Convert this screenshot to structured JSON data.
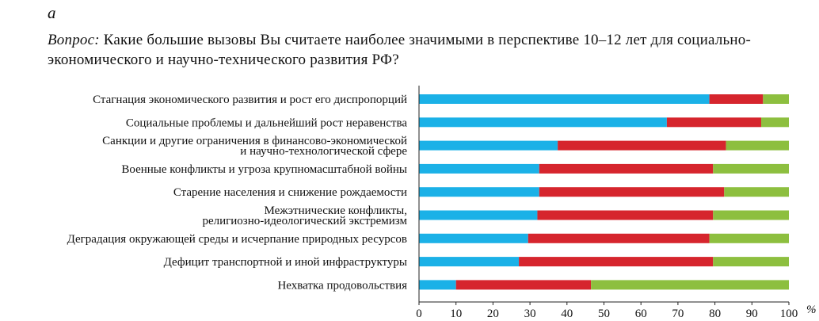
{
  "panel_letter": "а",
  "question": {
    "label": "Вопрос:",
    "text": " Какие большие вызовы Вы считаете наиболее значимыми в  перспективе 10–12 лет для социально-экономического и научно-технического развития РФ?"
  },
  "colors": {
    "segment_1": "#1bb1e7",
    "segment_2": "#d6252d",
    "segment_3": "#8dbf3f"
  },
  "chart_data": {
    "type": "bar",
    "orientation": "horizontal",
    "stacked": true,
    "categories": [
      [
        "Стагнация экономического развития и рост его диспропорций"
      ],
      [
        "Социальные проблемы и дальнейший рост неравенства"
      ],
      [
        "Санкции и другие ограничения в финансово-экономической",
        "и научно-технологической сфере"
      ],
      [
        "Военные конфликты и угроза крупномасштабной войны"
      ],
      [
        "Старение населения и снижение рождаемости"
      ],
      [
        "Межэтнические конфликты,",
        "религиозно-идеологический экстремизм"
      ],
      [
        "Деградация окружающей среды и исчерпание природных ресурсов"
      ],
      [
        "Дефицит транспортной и иной инфраструктуры"
      ],
      [
        "Нехватка продовольствия"
      ]
    ],
    "series": [
      {
        "values": [
          78.5,
          67,
          37.5,
          32.5,
          32.5,
          32,
          29.5,
          27,
          10
        ]
      },
      {
        "values": [
          14.5,
          25.5,
          45.5,
          47,
          50,
          47.5,
          49,
          52.5,
          36.5
        ]
      },
      {
        "values": [
          7,
          7.5,
          17,
          20.5,
          17.5,
          20.5,
          21.5,
          20.5,
          53.5
        ]
      }
    ],
    "xlim": [
      0,
      100
    ],
    "xticks": [
      "0",
      "10",
      "20",
      "30",
      "40",
      "50",
      "60",
      "70",
      "80",
      "90",
      "100"
    ],
    "x_unit": "%",
    "grid": false
  }
}
